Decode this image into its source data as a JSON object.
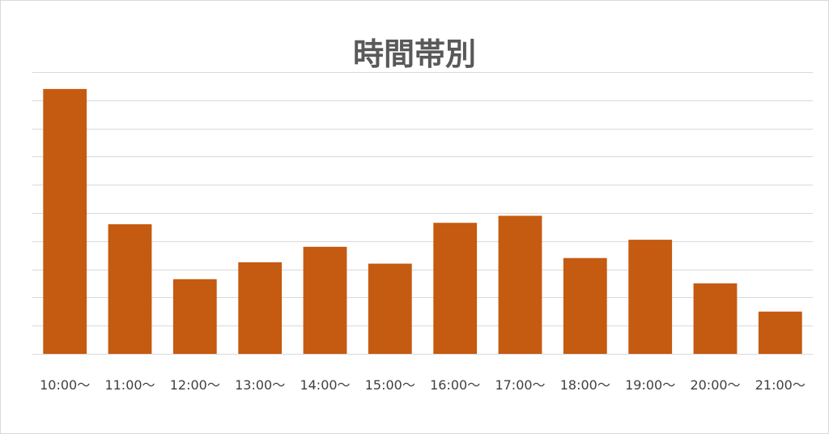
{
  "chart_data": {
    "type": "bar",
    "title": "時間帯別",
    "xlabel": "",
    "ylabel": "",
    "categories": [
      "10:00～",
      "11:00～",
      "12:00～",
      "13:00～",
      "14:00～",
      "15:00～",
      "16:00～",
      "17:00～",
      "18:00～",
      "19:00～",
      "20:00～",
      "21:00～"
    ],
    "values": [
      94,
      46,
      26.5,
      32.5,
      38,
      32,
      46.5,
      49,
      34,
      40.5,
      25,
      15
    ],
    "ylim": [
      0,
      100
    ],
    "grid": true,
    "legend": "none",
    "colors": {
      "bar": "#C55A11",
      "grid": "#D9D9D9",
      "title": "#595959",
      "tick": "#404040"
    }
  }
}
